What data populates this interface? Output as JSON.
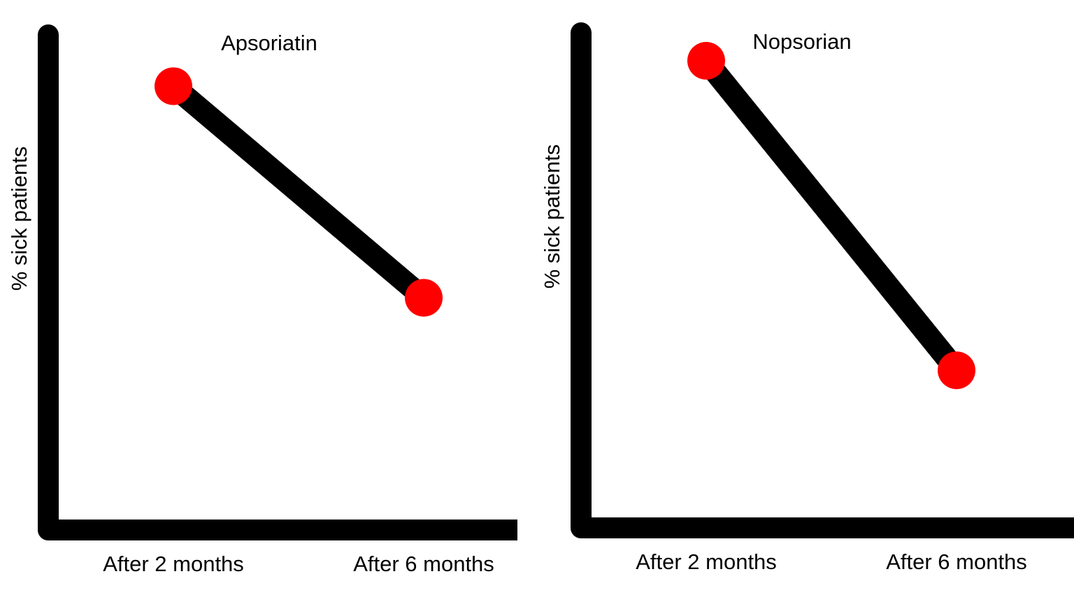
{
  "chart_data": [
    {
      "type": "line",
      "title": "Apsoriatin",
      "xlabel": "",
      "ylabel": "% sick patients",
      "categories": [
        "After 2 months",
        "After 6 months"
      ],
      "values": [
        86,
        45
      ],
      "ylim": [
        0,
        100
      ],
      "grid": false,
      "legend": "none",
      "colors": {
        "line": "#000000",
        "marker": "#ff0000",
        "axis": "#000000"
      }
    },
    {
      "type": "line",
      "title": "Nopsorian",
      "xlabel": "",
      "ylabel": "% sick patients",
      "categories": [
        "After 2 months",
        "After 6 months"
      ],
      "values": [
        83,
        28
      ],
      "ylim": [
        0,
        100
      ],
      "grid": false,
      "legend": "none",
      "colors": {
        "line": "#000000",
        "marker": "#ff0000",
        "axis": "#000000"
      }
    }
  ]
}
